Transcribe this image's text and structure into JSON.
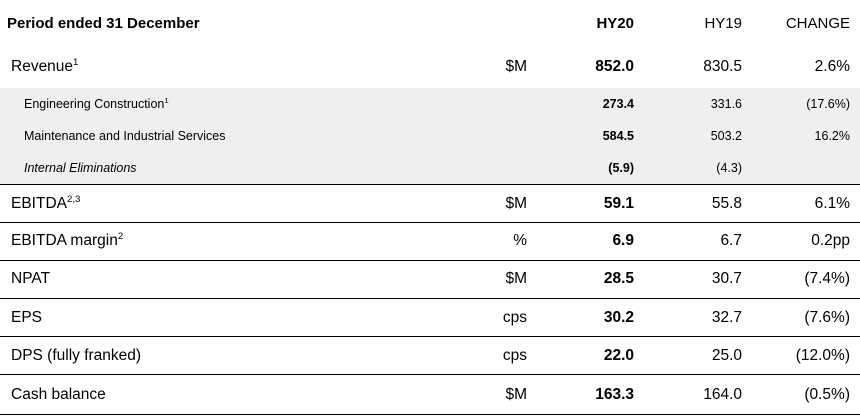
{
  "header": {
    "label": "Period ended 31 December",
    "hy20": "HY20",
    "hy19": "HY19",
    "change": "CHANGE"
  },
  "rows": [
    {
      "label": "Revenue",
      "sup": "1",
      "unit": "$M",
      "hy20": "852.0",
      "hy19": "830.5",
      "change": "2.6%"
    },
    {
      "label": "Engineering Construction",
      "sup": "1",
      "unit": "",
      "hy20": "273.4",
      "hy19": "331.6",
      "change": "(17.6%)"
    },
    {
      "label": "Maintenance and Industrial Services",
      "sup": "",
      "unit": "",
      "hy20": "584.5",
      "hy19": "503.2",
      "change": "16.2%"
    },
    {
      "label": "Internal Eliminations",
      "sup": "",
      "unit": "",
      "hy20": "(5.9)",
      "hy19": "(4.3)",
      "change": ""
    },
    {
      "label": "EBITDA",
      "sup": "2,3",
      "unit": "$M",
      "hy20": "59.1",
      "hy19": "55.8",
      "change": "6.1%"
    },
    {
      "label": "EBITDA margin",
      "sup": "2",
      "unit": "%",
      "hy20": "6.9",
      "hy19": "6.7",
      "change": "0.2pp"
    },
    {
      "label": "NPAT",
      "sup": "",
      "unit": "$M",
      "hy20": "28.5",
      "hy19": "30.7",
      "change": "(7.4%)"
    },
    {
      "label": "EPS",
      "sup": "",
      "unit": "cps",
      "hy20": "30.2",
      "hy19": "32.7",
      "change": "(7.6%)"
    },
    {
      "label": "DPS (fully franked)",
      "sup": "",
      "unit": "cps",
      "hy20": "22.0",
      "hy19": "25.0",
      "change": "(12.0%)"
    },
    {
      "label": "Cash balance",
      "sup": "",
      "unit": "$M",
      "hy20": "163.3",
      "hy19": "164.0",
      "change": "(0.5%)"
    }
  ]
}
